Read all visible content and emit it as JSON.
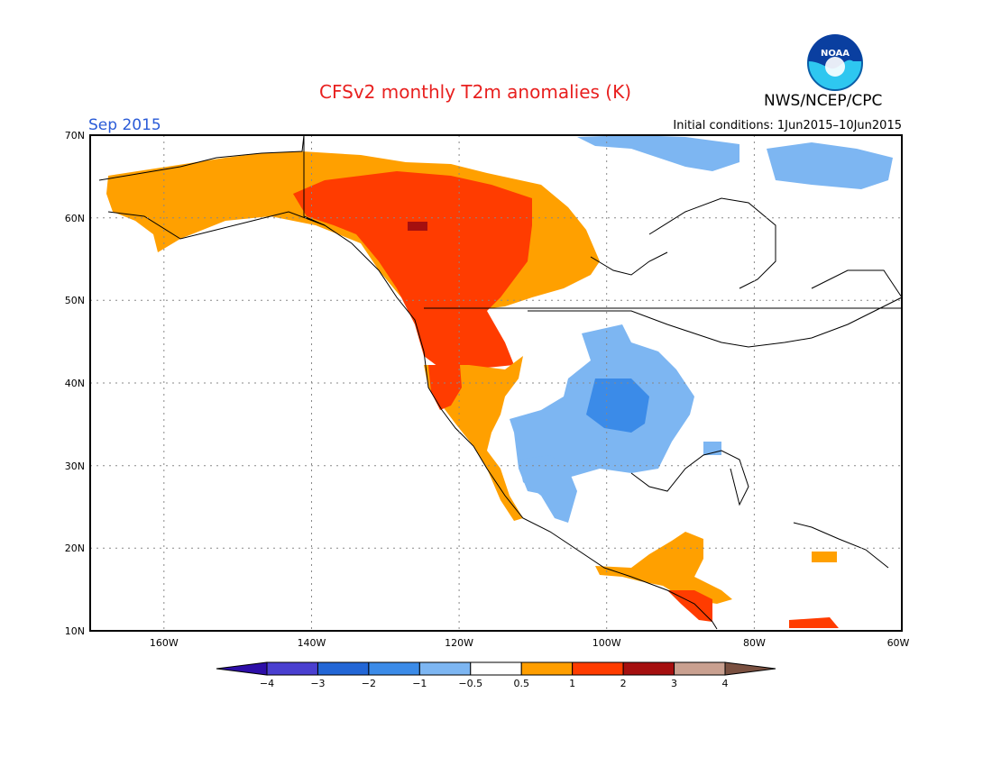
{
  "header": {
    "title": "CFSv2 monthly T2m anomalies (K)",
    "agency": "NWS/NCEP/CPC",
    "month": "Sep 2015",
    "initial_conditions": "Initial conditions: 1Jun2015–10Jun2015",
    "logo_text": "NOAA"
  },
  "map": {
    "lat_labels": [
      "70N",
      "60N",
      "50N",
      "40N",
      "30N",
      "20N",
      "10N"
    ],
    "lon_labels": [
      "160W",
      "140W",
      "120W",
      "100W",
      "80W",
      "60W"
    ],
    "region": "North America"
  },
  "colorbar": {
    "labels": [
      "−4",
      "−3",
      "−2",
      "−1",
      "−0.5",
      "0.5",
      "1",
      "2",
      "3",
      "4"
    ],
    "colors": [
      "#2d0ea8",
      "#4a3fd0",
      "#2266d6",
      "#3b8be8",
      "#7db6f2",
      "#ffffff",
      "#ff9e00",
      "#ff3c00",
      "#a50f0f",
      "#c9a090",
      "#7a5040"
    ]
  },
  "colors": {
    "title": "#e8201f",
    "month": "#2a5bd7",
    "warm_light": "#ffa000",
    "warm_mid": "#ff3c00",
    "warm_dark": "#a50f0f",
    "cool_light": "#7db6f2",
    "cool_mid": "#3b8be8"
  }
}
